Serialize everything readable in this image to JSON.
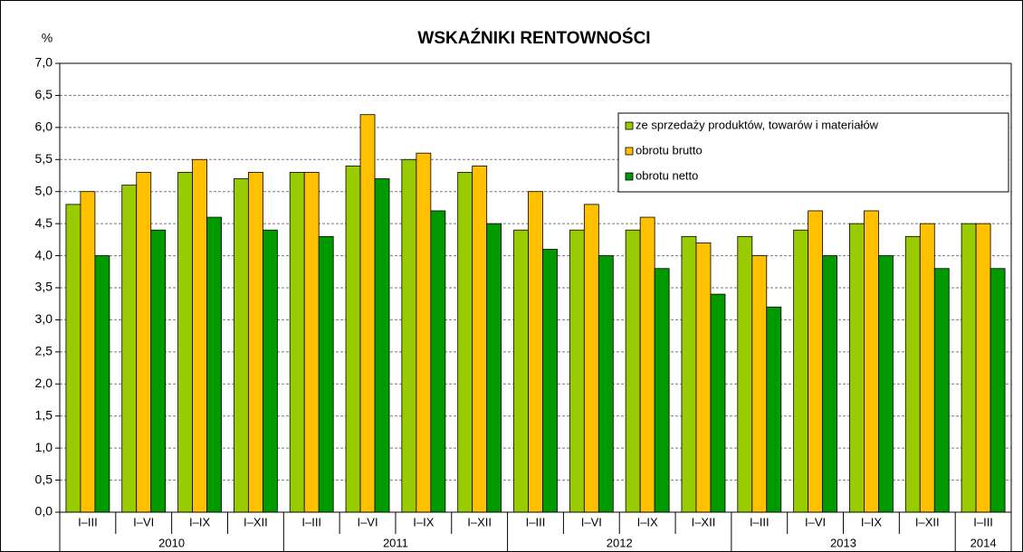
{
  "chart_data": {
    "type": "bar",
    "title": "WSKAŹNIKI RENTOWNOŚCI",
    "y_label": "%",
    "groups": [
      {
        "label": "2010",
        "categories": [
          "I–III",
          "I–VI",
          "I–IX",
          "I–XII"
        ]
      },
      {
        "label": "2011",
        "categories": [
          "I–III",
          "I–VI",
          "I–IX",
          "I–XII"
        ]
      },
      {
        "label": "2012",
        "categories": [
          "I–III",
          "I–VI",
          "I–IX",
          "I–XII"
        ]
      },
      {
        "label": "2013",
        "categories": [
          "I–III",
          "I–VI",
          "I–IX",
          "I–XII"
        ]
      },
      {
        "label": "2014",
        "categories": [
          "I–III"
        ]
      }
    ],
    "series": [
      {
        "name": "ze sprzedaży produktów, towarów i materiałów",
        "color": "#99cc00",
        "values": [
          4.8,
          5.1,
          5.3,
          5.2,
          5.3,
          5.4,
          5.5,
          5.3,
          4.4,
          4.4,
          4.4,
          4.3,
          4.3,
          4.4,
          4.5,
          4.3,
          4.5
        ]
      },
      {
        "name": "obrotu brutto",
        "color": "#ffc000",
        "values": [
          5.0,
          5.3,
          5.5,
          5.3,
          5.3,
          6.2,
          5.6,
          5.4,
          5.0,
          4.8,
          4.6,
          4.2,
          4.0,
          4.7,
          4.7,
          4.5,
          4.5
        ]
      },
      {
        "name": "obrotu netto",
        "color": "#009900",
        "values": [
          4.0,
          4.4,
          4.6,
          4.4,
          4.3,
          5.2,
          4.7,
          4.5,
          4.1,
          4.0,
          3.8,
          3.4,
          3.2,
          4.0,
          4.0,
          3.8,
          3.8
        ]
      }
    ],
    "ylim": [
      0,
      7
    ],
    "yticks": [
      {
        "value": 0,
        "label": "0,0"
      },
      {
        "value": 0.5,
        "label": "0,5"
      },
      {
        "value": 1,
        "label": "1,0"
      },
      {
        "value": 1.5,
        "label": "1,5"
      },
      {
        "value": 2,
        "label": "2,0"
      },
      {
        "value": 2.5,
        "label": "2,5"
      },
      {
        "value": 3,
        "label": "3,0"
      },
      {
        "value": 3.5,
        "label": "3,5"
      },
      {
        "value": 4,
        "label": "4,0"
      },
      {
        "value": 4.5,
        "label": "4,5"
      },
      {
        "value": 5,
        "label": "5,0"
      },
      {
        "value": 5.5,
        "label": "5,5"
      },
      {
        "value": 6,
        "label": "6,0"
      },
      {
        "value": 6.5,
        "label": "6,5"
      },
      {
        "value": 7,
        "label": "7,0"
      }
    ],
    "grid": true,
    "legend": "upper right"
  }
}
